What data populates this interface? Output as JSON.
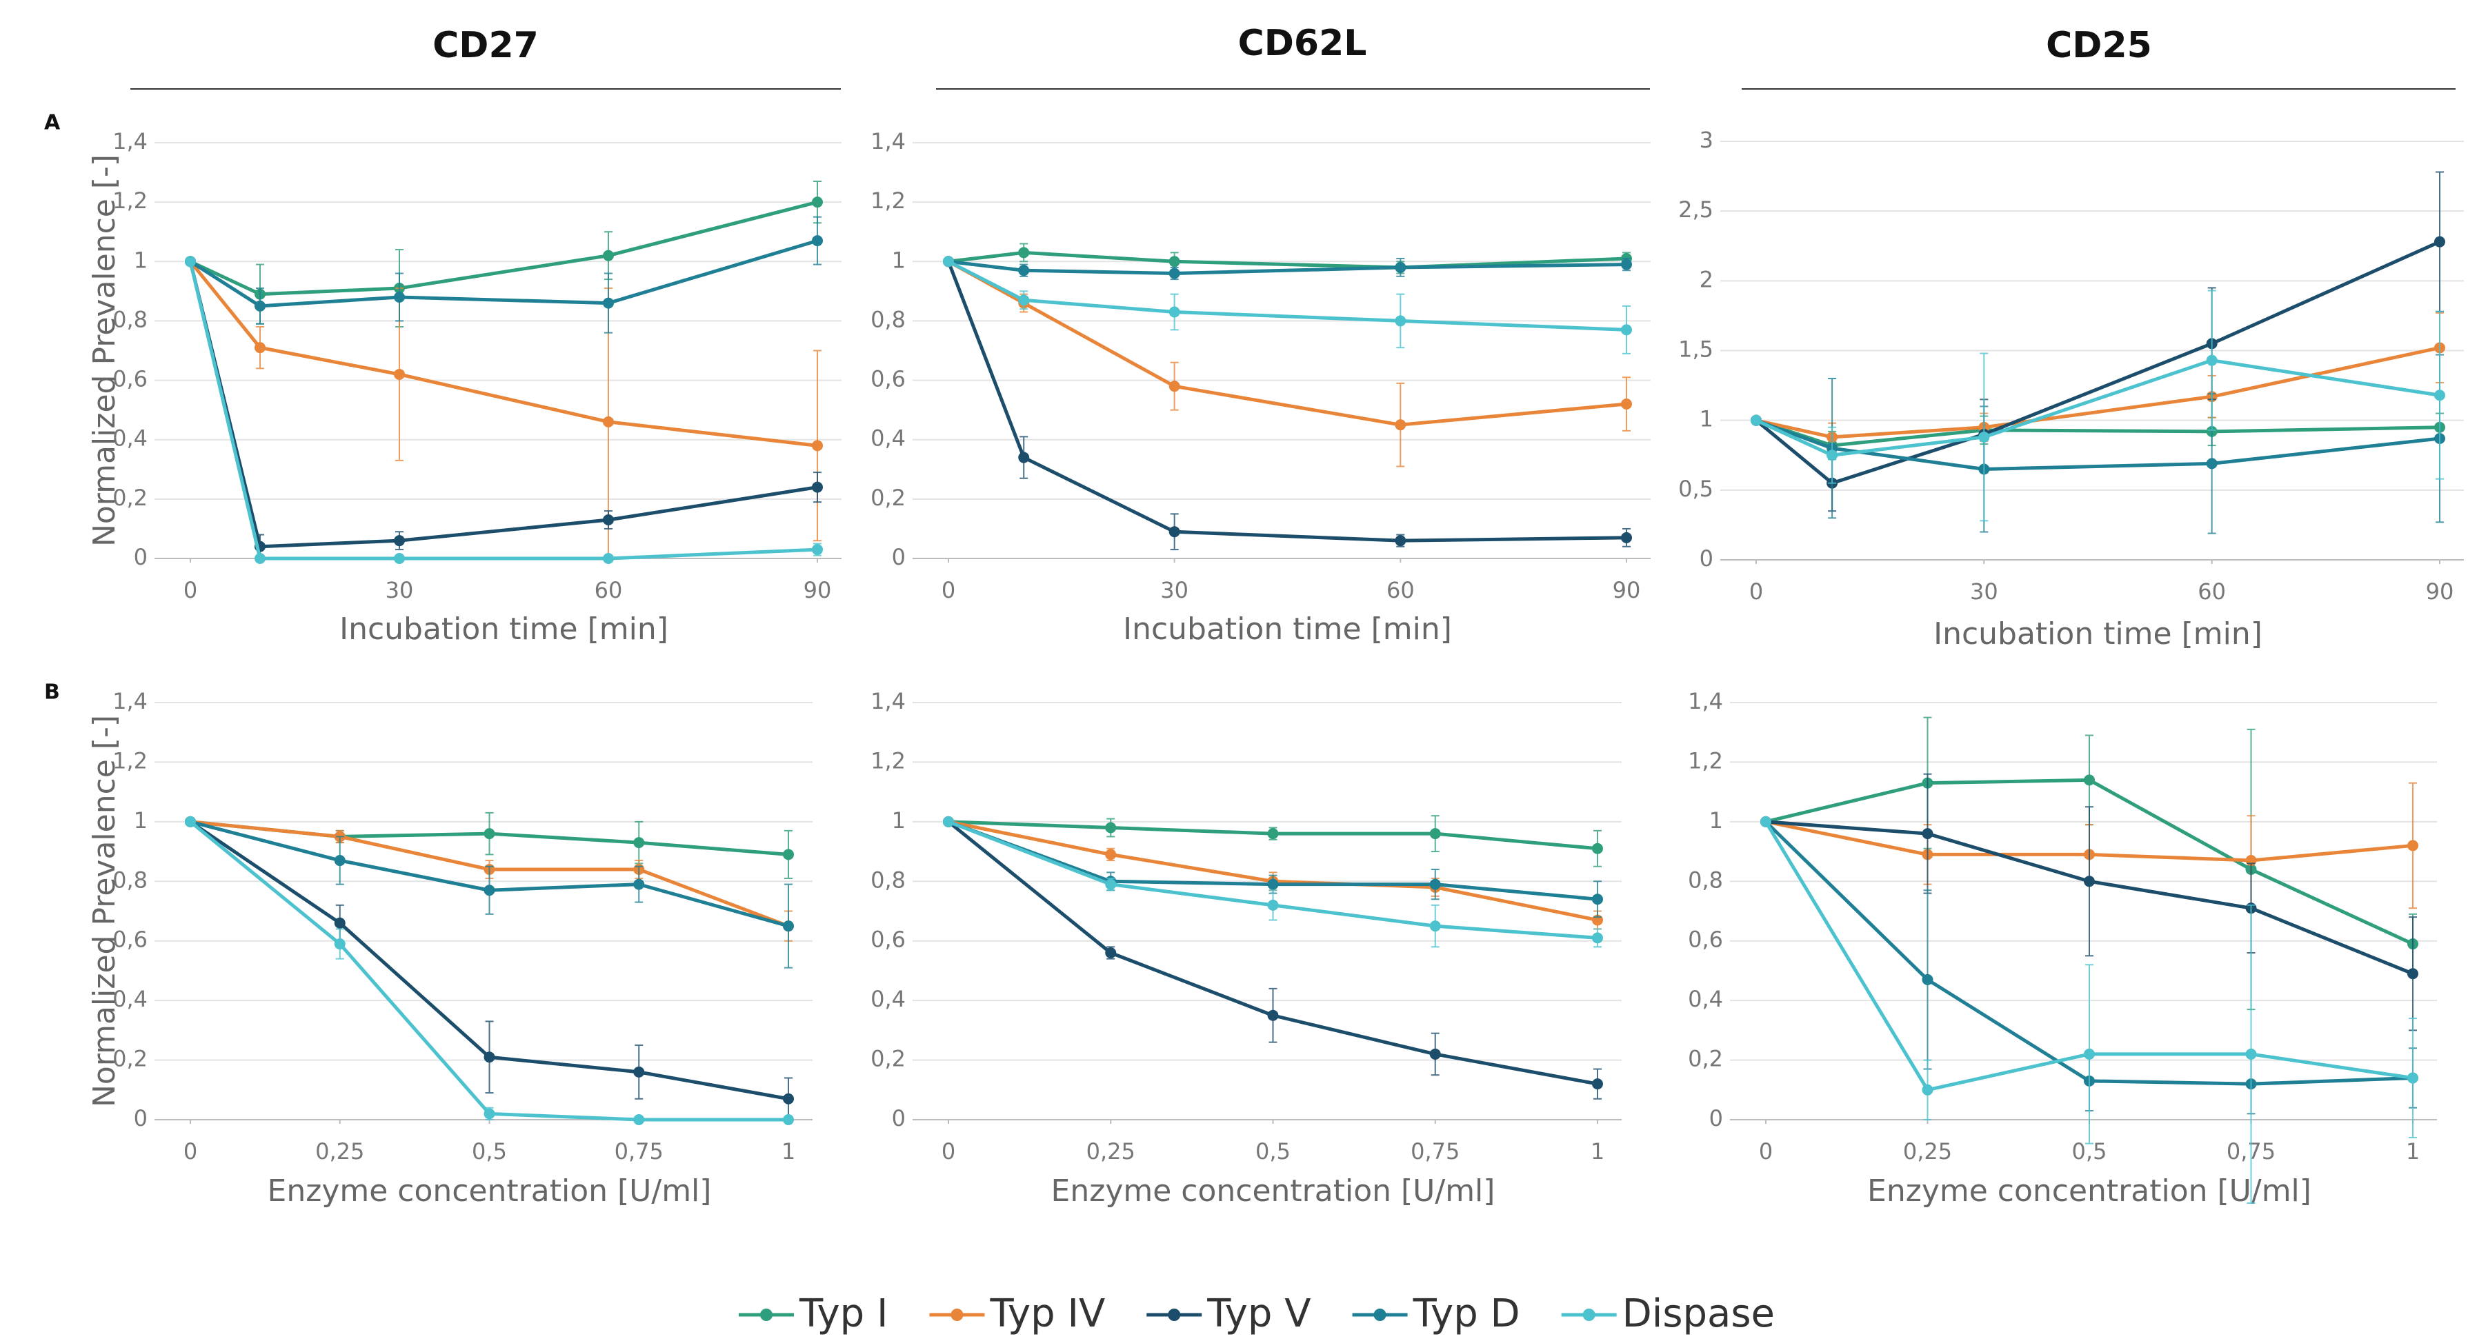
{
  "column_titles": [
    "CD27",
    "CD62L",
    "CD25"
  ],
  "row_labels": [
    "A",
    "B"
  ],
  "chart_data": [
    {
      "type": "line",
      "x": [
        0,
        10,
        30,
        60,
        90
      ],
      "xlim": [
        0,
        90
      ],
      "xticks": [
        0,
        30,
        60,
        90
      ],
      "ylim": [
        0,
        1.4
      ],
      "yticks": [
        0,
        {
          "value": 0.2,
          "label": "0,2"
        },
        {
          "value": 0.4,
          "label": "0,4"
        },
        {
          "value": 0.6,
          "label": "0,6"
        },
        {
          "value": 0.8,
          "label": "0,8"
        },
        1,
        {
          "value": 1.2,
          "label": "1,2"
        },
        {
          "value": 1.4,
          "label": "1,4"
        }
      ],
      "xlabel": "Incubation time [min]",
      "ylabel": "Normalized Prevalence [-]",
      "grid": true,
      "series": [
        {
          "name": "Typ I",
          "color": "#2f9e7c",
          "values": [
            1,
            0.89,
            0.91,
            1.02,
            1.2
          ],
          "errors": [
            0,
            0.1,
            0.13,
            0.08,
            0.07
          ]
        },
        {
          "name": "Typ IV",
          "color": "#e98539",
          "values": [
            1,
            0.71,
            0.62,
            0.46,
            0.38
          ],
          "errors": [
            0,
            0.07,
            0.29,
            0.45,
            0.32
          ]
        },
        {
          "name": "Typ V",
          "color": "#1c4d6b",
          "values": [
            1,
            0.04,
            0.06,
            0.13,
            0.24
          ],
          "errors": [
            0,
            0.04,
            0.03,
            0.03,
            0.05
          ]
        },
        {
          "name": "Typ D",
          "color": "#1f7f94",
          "values": [
            1,
            0.85,
            0.88,
            0.86,
            1.07
          ],
          "errors": [
            0,
            0.06,
            0.08,
            0.1,
            0.08
          ]
        },
        {
          "name": "Dispase",
          "color": "#4cc2cf",
          "values": [
            1,
            0,
            0,
            0,
            0.03
          ],
          "errors": [
            0,
            0.01,
            0.01,
            0.01,
            0.02
          ]
        }
      ]
    },
    {
      "type": "line",
      "x": [
        0,
        10,
        30,
        60,
        90
      ],
      "xlim": [
        0,
        90
      ],
      "xticks": [
        0,
        30,
        60,
        90
      ],
      "ylim": [
        0,
        1.4
      ],
      "yticks": [
        0,
        {
          "value": 0.2,
          "label": "0,2"
        },
        {
          "value": 0.4,
          "label": "0,4"
        },
        {
          "value": 0.6,
          "label": "0,6"
        },
        {
          "value": 0.8,
          "label": "0,8"
        },
        1,
        {
          "value": 1.2,
          "label": "1,2"
        },
        {
          "value": 1.4,
          "label": "1,4"
        }
      ],
      "xlabel": "Incubation time [min]",
      "grid": true,
      "series": [
        {
          "color": "#2f9e7c",
          "values": [
            1,
            1.03,
            1.0,
            0.98,
            1.01
          ],
          "errors": [
            0,
            0.03,
            0.03,
            0.02,
            0.02
          ]
        },
        {
          "color": "#e98539",
          "values": [
            1,
            0.86,
            0.58,
            0.45,
            0.52
          ],
          "errors": [
            0,
            0.03,
            0.08,
            0.14,
            0.09
          ]
        },
        {
          "color": "#1c4d6b",
          "values": [
            1,
            0.34,
            0.09,
            0.06,
            0.07
          ],
          "errors": [
            0,
            0.07,
            0.06,
            0.02,
            0.03
          ]
        },
        {
          "color": "#1f7f94",
          "values": [
            1,
            0.97,
            0.96,
            0.98,
            0.99
          ],
          "errors": [
            0,
            0.02,
            0.02,
            0.03,
            0.02
          ]
        },
        {
          "color": "#4cc2cf",
          "values": [
            1,
            0.87,
            0.83,
            0.8,
            0.77
          ],
          "errors": [
            0,
            0.03,
            0.06,
            0.09,
            0.08
          ]
        }
      ]
    },
    {
      "type": "line",
      "x": [
        0,
        10,
        30,
        60,
        90
      ],
      "xlim": [
        0,
        90
      ],
      "xticks": [
        0,
        30,
        60,
        90
      ],
      "ylim": [
        0,
        3
      ],
      "yticks": [
        0,
        {
          "value": 0.5,
          "label": "0,5"
        },
        1,
        {
          "value": 1.5,
          "label": "1,5"
        },
        2,
        {
          "value": 2.5,
          "label": "2,5"
        },
        3
      ],
      "xlabel": "Incubation time [min]",
      "grid": true,
      "series": [
        {
          "color": "#2f9e7c",
          "values": [
            1,
            0.82,
            0.93,
            0.92,
            0.95
          ],
          "errors": [
            0,
            0.1,
            0.1,
            0.1,
            0.1
          ]
        },
        {
          "color": "#e98539",
          "values": [
            1,
            0.88,
            0.95,
            1.17,
            1.52
          ],
          "errors": [
            0,
            0.1,
            0.1,
            0.15,
            0.25
          ]
        },
        {
          "color": "#1c4d6b",
          "values": [
            1,
            0.55,
            0.9,
            1.55,
            2.28
          ],
          "errors": [
            0,
            0.2,
            0.25,
            0.4,
            0.5
          ]
        },
        {
          "color": "#1f7f94",
          "values": [
            1,
            0.8,
            0.65,
            0.69,
            0.87
          ],
          "errors": [
            0,
            0.5,
            0.45,
            0.5,
            0.6
          ]
        },
        {
          "color": "#4cc2cf",
          "values": [
            1,
            0.75,
            0.88,
            1.43,
            1.18
          ],
          "errors": [
            0,
            0.2,
            0.6,
            0.5,
            0.6
          ]
        }
      ]
    },
    {
      "type": "line",
      "x": [
        0,
        0.25,
        0.5,
        0.75,
        1
      ],
      "xlim": [
        0,
        1
      ],
      "xticks": [
        0,
        {
          "value": 0.25,
          "label": "0,25"
        },
        {
          "value": 0.5,
          "label": "0,5"
        },
        {
          "value": 0.75,
          "label": "0,75"
        },
        1
      ],
      "ylim": [
        0,
        1.4
      ],
      "yticks": [
        0,
        {
          "value": 0.2,
          "label": "0,2"
        },
        {
          "value": 0.4,
          "label": "0,4"
        },
        {
          "value": 0.6,
          "label": "0,6"
        },
        {
          "value": 0.8,
          "label": "0,8"
        },
        1,
        {
          "value": 1.2,
          "label": "1,2"
        },
        {
          "value": 1.4,
          "label": "1,4"
        }
      ],
      "xlabel": "Enzyme concentration [U/ml]",
      "ylabel": "Normalized Prevalence [-]",
      "grid": true,
      "series": [
        {
          "color": "#2f9e7c",
          "values": [
            1,
            0.95,
            0.96,
            0.93,
            0.89
          ],
          "errors": [
            0,
            0.02,
            0.07,
            0.07,
            0.08
          ]
        },
        {
          "color": "#e98539",
          "values": [
            1,
            0.95,
            0.84,
            0.84,
            0.65
          ],
          "errors": [
            0,
            0.02,
            0.03,
            0.03,
            0.05
          ]
        },
        {
          "color": "#1c4d6b",
          "values": [
            1,
            0.66,
            0.21,
            0.16,
            0.07
          ],
          "errors": [
            0,
            0.06,
            0.12,
            0.09,
            0.07
          ]
        },
        {
          "color": "#1f7f94",
          "values": [
            1,
            0.87,
            0.77,
            0.79,
            0.65
          ],
          "errors": [
            0,
            0.08,
            0.08,
            0.06,
            0.14
          ]
        },
        {
          "color": "#4cc2cf",
          "values": [
            1,
            0.59,
            0.02,
            0,
            0
          ],
          "errors": [
            0,
            0.05,
            0.02,
            0,
            0
          ]
        }
      ]
    },
    {
      "type": "line",
      "x": [
        0,
        0.25,
        0.5,
        0.75,
        1
      ],
      "xlim": [
        0,
        1
      ],
      "xticks": [
        0,
        {
          "value": 0.25,
          "label": "0,25"
        },
        {
          "value": 0.5,
          "label": "0,5"
        },
        {
          "value": 0.75,
          "label": "0,75"
        },
        1
      ],
      "ylim": [
        0,
        1.4
      ],
      "yticks": [
        0,
        {
          "value": 0.2,
          "label": "0,2"
        },
        {
          "value": 0.4,
          "label": "0,4"
        },
        {
          "value": 0.6,
          "label": "0,6"
        },
        {
          "value": 0.8,
          "label": "0,8"
        },
        1,
        {
          "value": 1.2,
          "label": "1,2"
        },
        {
          "value": 1.4,
          "label": "1,4"
        }
      ],
      "xlabel": "Enzyme concentration [U/ml]",
      "grid": true,
      "series": [
        {
          "color": "#2f9e7c",
          "values": [
            1,
            0.98,
            0.96,
            0.96,
            0.91
          ],
          "errors": [
            0,
            0.03,
            0.02,
            0.06,
            0.06
          ]
        },
        {
          "color": "#e98539",
          "values": [
            1,
            0.89,
            0.8,
            0.78,
            0.67
          ],
          "errors": [
            0,
            0.02,
            0.03,
            0.03,
            0.03
          ]
        },
        {
          "color": "#1c4d6b",
          "values": [
            1,
            0.56,
            0.35,
            0.22,
            0.12
          ],
          "errors": [
            0,
            0.02,
            0.09,
            0.07,
            0.05
          ]
        },
        {
          "color": "#1f7f94",
          "values": [
            1,
            0.8,
            0.79,
            0.79,
            0.74
          ],
          "errors": [
            0,
            0.03,
            0.03,
            0.05,
            0.06
          ]
        },
        {
          "color": "#4cc2cf",
          "values": [
            1,
            0.79,
            0.72,
            0.65,
            0.61
          ],
          "errors": [
            0,
            0.02,
            0.05,
            0.07,
            0.03
          ]
        }
      ]
    },
    {
      "type": "line",
      "x": [
        0,
        0.25,
        0.5,
        0.75,
        1
      ],
      "xlim": [
        0,
        1
      ],
      "xticks": [
        0,
        {
          "value": 0.25,
          "label": "0,25"
        },
        {
          "value": 0.5,
          "label": "0,5"
        },
        {
          "value": 0.75,
          "label": "0,75"
        },
        1
      ],
      "ylim": [
        0,
        1.4
      ],
      "yticks": [
        0,
        {
          "value": 0.2,
          "label": "0,2"
        },
        {
          "value": 0.4,
          "label": "0,4"
        },
        {
          "value": 0.6,
          "label": "0,6"
        },
        {
          "value": 0.8,
          "label": "0,8"
        },
        1,
        {
          "value": 1.2,
          "label": "1,2"
        },
        {
          "value": 1.4,
          "label": "1,4"
        }
      ],
      "xlabel": "Enzyme concentration [U/ml]",
      "grid": true,
      "series": [
        {
          "color": "#2f9e7c",
          "values": [
            1,
            1.13,
            1.14,
            0.84,
            0.59
          ],
          "errors": [
            0,
            0.22,
            0.15,
            0.47,
            0.1
          ]
        },
        {
          "color": "#e98539",
          "values": [
            1,
            0.89,
            0.89,
            0.87,
            0.92
          ],
          "errors": [
            0,
            0.1,
            0.1,
            0.15,
            0.21
          ]
        },
        {
          "color": "#1c4d6b",
          "values": [
            1,
            0.96,
            0.8,
            0.71,
            0.49
          ],
          "errors": [
            0,
            0.2,
            0.25,
            0.15,
            0.19
          ]
        },
        {
          "color": "#1f7f94",
          "values": [
            1,
            0.47,
            0.13,
            0.12,
            0.14
          ],
          "errors": [
            0,
            0.3,
            0.1,
            0.1,
            0.1
          ]
        },
        {
          "color": "#4cc2cf",
          "values": [
            1,
            0.1,
            0.22,
            0.22,
            0.14
          ],
          "errors": [
            0,
            0.1,
            0.3,
            0.5,
            0.2
          ]
        }
      ]
    }
  ]
}
